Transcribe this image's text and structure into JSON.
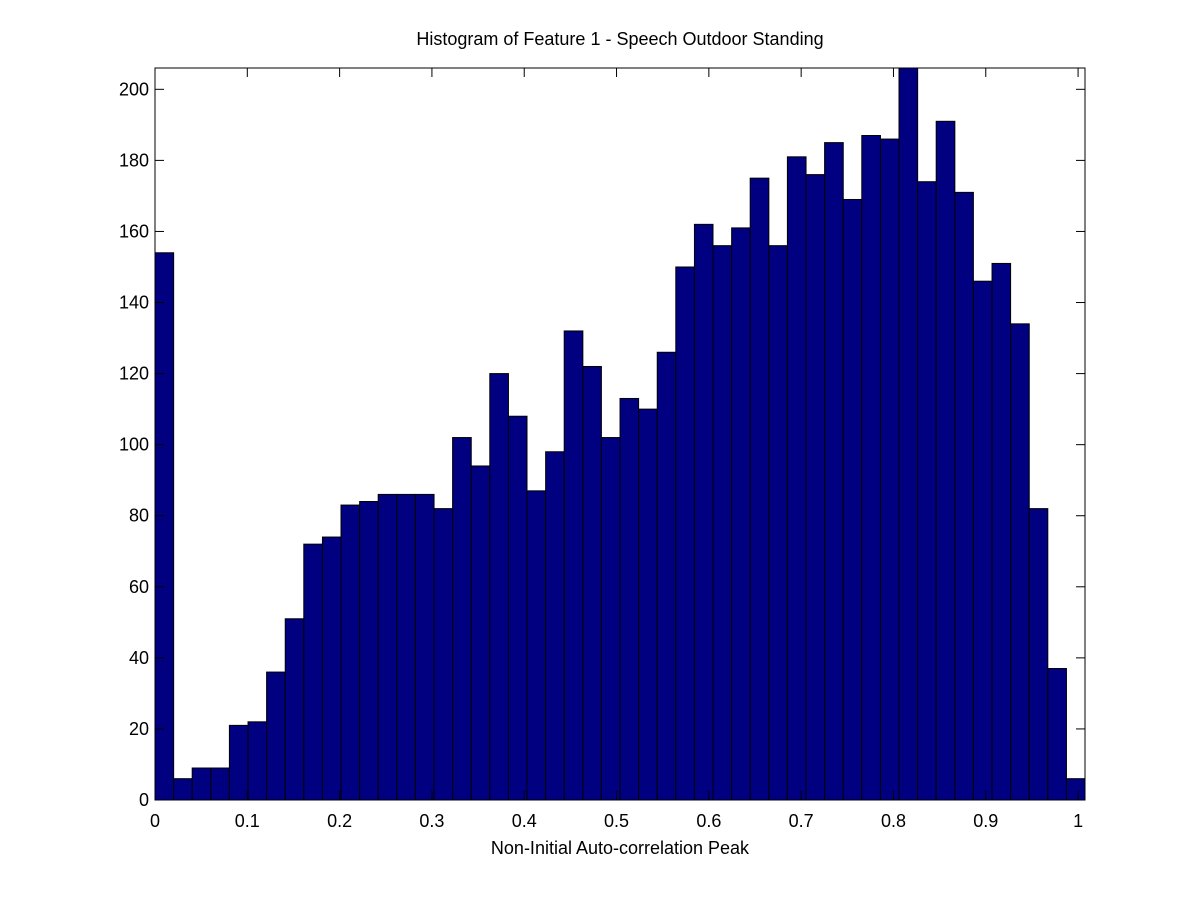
{
  "chart_data": {
    "type": "histogram",
    "title": "Histogram of Feature 1 - Speech Outdoor Standing",
    "x_label": "Non-Initial Auto-correlation Peak",
    "bins": [
      0,
      0.0202,
      0.0403,
      0.0605,
      0.0806,
      0.1008,
      0.1209,
      0.1411,
      0.1612,
      0.1814,
      0.2015,
      0.2217,
      0.2418,
      0.262,
      0.2821,
      0.3023,
      0.3224,
      0.3426,
      0.3627,
      0.3829,
      0.403,
      0.4232,
      0.4433,
      0.4635,
      0.4836,
      0.5038,
      0.5239,
      0.5441,
      0.5642,
      0.5844,
      0.6045,
      0.6247,
      0.6448,
      0.665,
      0.6851,
      0.7053,
      0.7254,
      0.7456,
      0.7657,
      0.7859,
      0.806,
      0.8262,
      0.8463,
      0.8665,
      0.8866,
      0.9068,
      0.9269,
      0.9471,
      0.9672,
      0.9874,
      1.0075
    ],
    "values": [
      154,
      6,
      9,
      9,
      21,
      22,
      36,
      51,
      72,
      74,
      83,
      84,
      86,
      86,
      86,
      82,
      102,
      94,
      120,
      108,
      87,
      98,
      132,
      122,
      102,
      113,
      110,
      126,
      150,
      162,
      156,
      161,
      175,
      156,
      181,
      176,
      185,
      169,
      187,
      186,
      206,
      174,
      191,
      171,
      146,
      151,
      134,
      82,
      37,
      6
    ],
    "color": "#000080",
    "xlim": [
      0,
      1.0075
    ],
    "ylim": [
      0,
      206
    ],
    "xticks": [
      0,
      0.1,
      0.2,
      0.3,
      0.4,
      0.5,
      0.6,
      0.7,
      0.8,
      0.9,
      1
    ],
    "yticks": [
      0,
      20,
      40,
      60,
      80,
      100,
      120,
      140,
      160,
      180,
      200
    ]
  }
}
